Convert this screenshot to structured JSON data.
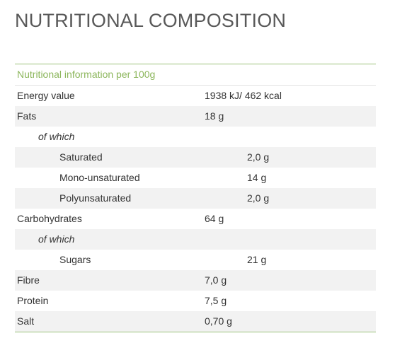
{
  "page": {
    "title": "NUTRITIONAL COMPOSITION"
  },
  "table": {
    "caption": "Nutritional information per 100g",
    "rows": [
      {
        "label": "Energy value",
        "value": "1938 kJ/ 462 kcal"
      },
      {
        "label": "Fats",
        "value": "18 g"
      },
      {
        "label": "of which",
        "value": ""
      },
      {
        "label": "Saturated",
        "value": "2,0 g"
      },
      {
        "label": "Mono-unsaturated",
        "value": "14 g"
      },
      {
        "label": "Polyunsaturated",
        "value": "2,0 g"
      },
      {
        "label": "Carbohydrates",
        "value": "64 g"
      },
      {
        "label": "of which",
        "value": ""
      },
      {
        "label": "Sugars",
        "value": "21 g"
      },
      {
        "label": "Fibre",
        "value": "7,0 g"
      },
      {
        "label": "Protein",
        "value": "7,5 g"
      },
      {
        "label": "Salt",
        "value": "0,70 g"
      }
    ]
  },
  "colors": {
    "accent": "#8cb65c",
    "rule": "#9bc27a",
    "stripe": "#f2f2f2",
    "title": "#595959",
    "text": "#333333"
  }
}
